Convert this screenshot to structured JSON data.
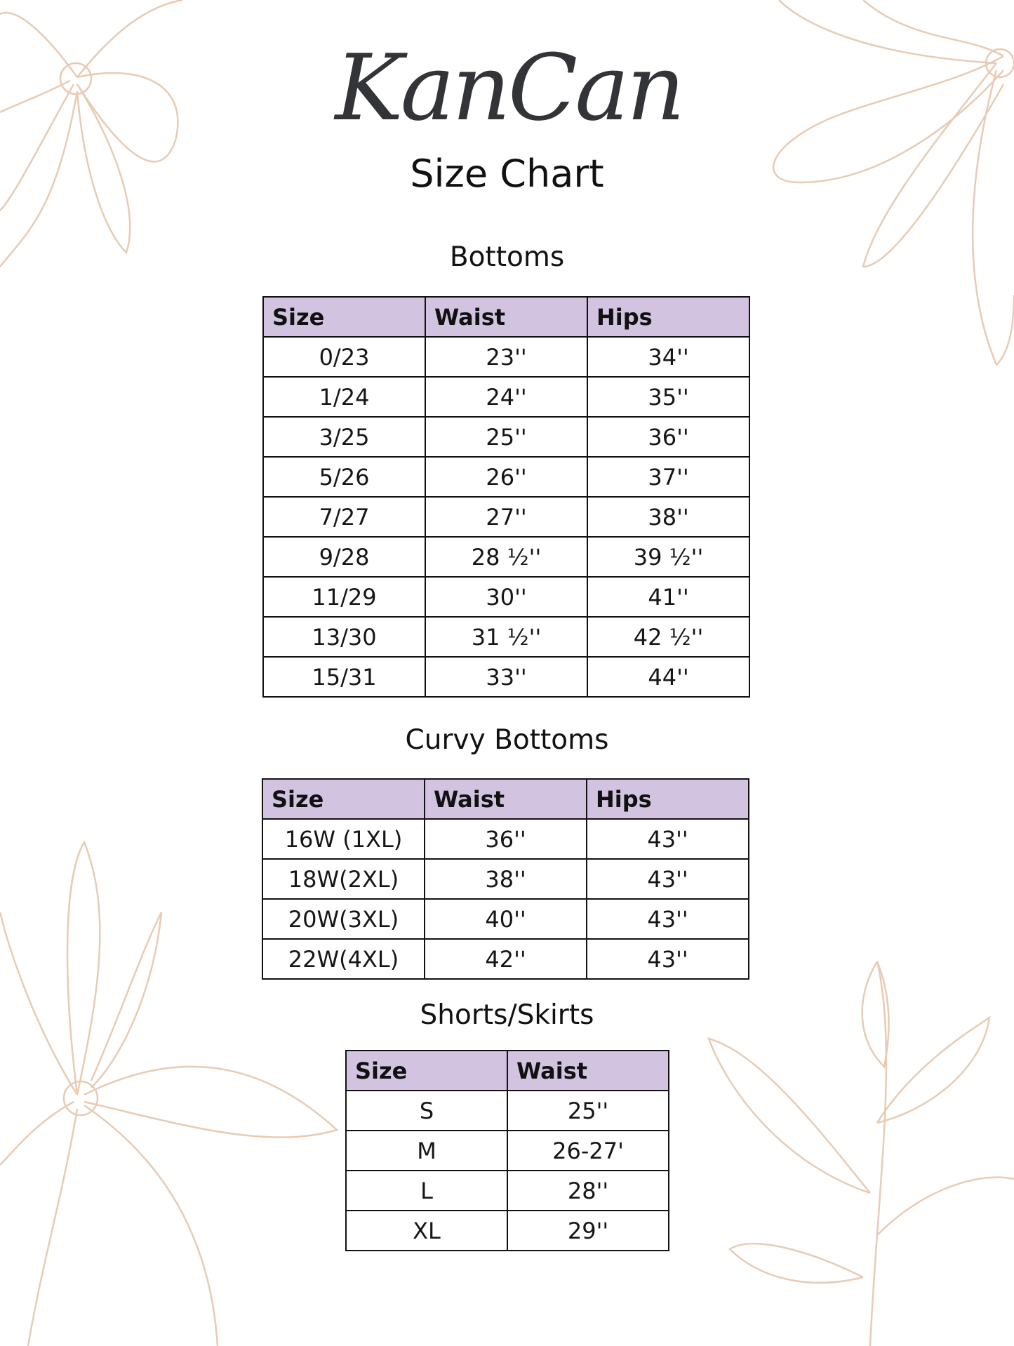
{
  "brand": {
    "logo_text": "KanCan"
  },
  "title": "Size Chart",
  "colors": {
    "header_fill": "#d2c3e0",
    "floral_line": "#e8cbb3",
    "text": "#111111"
  },
  "sections": [
    {
      "heading": "Bottoms",
      "columns": [
        "Size",
        "Waist",
        "Hips"
      ],
      "rows": [
        [
          "0/23",
          "23''",
          "34''"
        ],
        [
          "1/24",
          "24''",
          "35''"
        ],
        [
          "3/25",
          "25''",
          "36''"
        ],
        [
          "5/26",
          "26''",
          "37''"
        ],
        [
          "7/27",
          "27''",
          "38''"
        ],
        [
          "9/28",
          "28 ½''",
          "39 ½''"
        ],
        [
          "11/29",
          "30''",
          "41''"
        ],
        [
          "13/30",
          "31 ½''",
          "42 ½''"
        ],
        [
          "15/31",
          "33''",
          "44''"
        ]
      ]
    },
    {
      "heading": "Curvy Bottoms",
      "columns": [
        "Size",
        "Waist",
        "Hips"
      ],
      "rows": [
        [
          "16W (1XL)",
          "36''",
          "43''"
        ],
        [
          "18W(2XL)",
          "38''",
          "43''"
        ],
        [
          "20W(3XL)",
          "40''",
          "43''"
        ],
        [
          "22W(4XL)",
          "42''",
          "43''"
        ]
      ]
    },
    {
      "heading": "Shorts/Skirts",
      "columns": [
        "Size",
        "Waist"
      ],
      "rows": [
        [
          "S",
          "25''"
        ],
        [
          "M",
          "26-27'"
        ],
        [
          "L",
          "28''"
        ],
        [
          "XL",
          "29''"
        ]
      ]
    }
  ]
}
